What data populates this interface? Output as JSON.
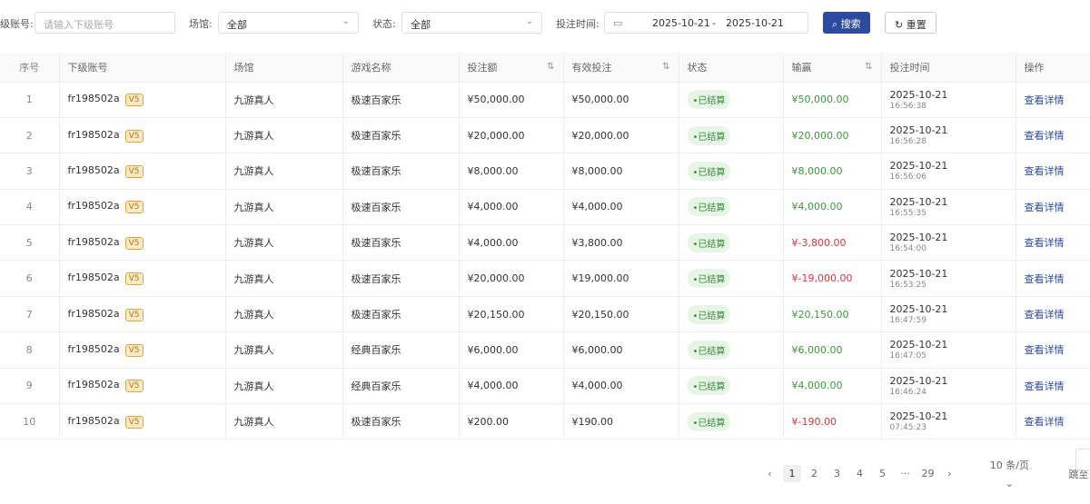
{
  "filters": {
    "account_label": "级账号:",
    "account_placeholder": "请输入下级账号",
    "venue_label": "场馆:",
    "venue_value": "全部",
    "status_label": "状态:",
    "status_value": "全部",
    "time_label": "投注时间:",
    "date_from": "2025-10-21",
    "date_sep": "-",
    "date_to": "2025-10-21",
    "search": "搜索",
    "reset": "重置"
  },
  "columns": [
    "序号",
    "下级账号",
    "场馆",
    "游戏名称",
    "投注额",
    "有效投注",
    "状态",
    "输赢",
    "投注时间",
    "操作"
  ],
  "rows": [
    {
      "idx": "1",
      "account": "fr198502a",
      "vip": "V5",
      "venue": "九游真人",
      "game": "极速百家乐",
      "bet": "¥50,000.00",
      "valid": "¥50,000.00",
      "status": "•已结算",
      "win": "¥50,000.00",
      "win_sign": "pos",
      "date": "2025-10-21",
      "time": "16:56:38",
      "action": "查看详情"
    },
    {
      "idx": "2",
      "account": "fr198502a",
      "vip": "V5",
      "venue": "九游真人",
      "game": "极速百家乐",
      "bet": "¥20,000.00",
      "valid": "¥20,000.00",
      "status": "•已结算",
      "win": "¥20,000.00",
      "win_sign": "pos",
      "date": "2025-10-21",
      "time": "16:56:28",
      "action": "查看详情"
    },
    {
      "idx": "3",
      "account": "fr198502a",
      "vip": "V5",
      "venue": "九游真人",
      "game": "极速百家乐",
      "bet": "¥8,000.00",
      "valid": "¥8,000.00",
      "status": "•已结算",
      "win": "¥8,000.00",
      "win_sign": "pos",
      "date": "2025-10-21",
      "time": "16:56:06",
      "action": "查看详情"
    },
    {
      "idx": "4",
      "account": "fr198502a",
      "vip": "V5",
      "venue": "九游真人",
      "game": "极速百家乐",
      "bet": "¥4,000.00",
      "valid": "¥4,000.00",
      "status": "•已结算",
      "win": "¥4,000.00",
      "win_sign": "pos",
      "date": "2025-10-21",
      "time": "16:55:35",
      "action": "查看详情"
    },
    {
      "idx": "5",
      "account": "fr198502a",
      "vip": "V5",
      "venue": "九游真人",
      "game": "极速百家乐",
      "bet": "¥4,000.00",
      "valid": "¥3,800.00",
      "status": "•已结算",
      "win": "¥-3,800.00",
      "win_sign": "neg",
      "date": "2025-10-21",
      "time": "16:54:00",
      "action": "查看详情"
    },
    {
      "idx": "6",
      "account": "fr198502a",
      "vip": "V5",
      "venue": "九游真人",
      "game": "极速百家乐",
      "bet": "¥20,000.00",
      "valid": "¥19,000.00",
      "status": "•已结算",
      "win": "¥-19,000.00",
      "win_sign": "neg",
      "date": "2025-10-21",
      "time": "16:53:25",
      "action": "查看详情"
    },
    {
      "idx": "7",
      "account": "fr198502a",
      "vip": "V5",
      "venue": "九游真人",
      "game": "极速百家乐",
      "bet": "¥20,150.00",
      "valid": "¥20,150.00",
      "status": "•已结算",
      "win": "¥20,150.00",
      "win_sign": "pos",
      "date": "2025-10-21",
      "time": "16:47:59",
      "action": "查看详情"
    },
    {
      "idx": "8",
      "account": "fr198502a",
      "vip": "V5",
      "venue": "九游真人",
      "game": "经典百家乐",
      "bet": "¥6,000.00",
      "valid": "¥6,000.00",
      "status": "•已结算",
      "win": "¥6,000.00",
      "win_sign": "pos",
      "date": "2025-10-21",
      "time": "16:47:05",
      "action": "查看详情"
    },
    {
      "idx": "9",
      "account": "fr198502a",
      "vip": "V5",
      "venue": "九游真人",
      "game": "经典百家乐",
      "bet": "¥4,000.00",
      "valid": "¥4,000.00",
      "status": "•已结算",
      "win": "¥4,000.00",
      "win_sign": "pos",
      "date": "2025-10-21",
      "time": "16:46:24",
      "action": "查看详情"
    },
    {
      "idx": "10",
      "account": "fr198502a",
      "vip": "V5",
      "venue": "九游真人",
      "game": "极速百家乐",
      "bet": "¥200.00",
      "valid": "¥190.00",
      "status": "•已结算",
      "win": "¥-190.00",
      "win_sign": "neg",
      "date": "2025-10-21",
      "time": "07:45:23",
      "action": "查看详情"
    }
  ],
  "pagination": {
    "prev": "‹",
    "pages": [
      "1",
      "2",
      "3",
      "4",
      "5",
      "···",
      "29"
    ],
    "current": "1",
    "next": "›",
    "page_size": "10 条/页",
    "jump_label": "跳至"
  },
  "colors": {
    "primary": "#2b4aa0",
    "positive": "#3a9a3a",
    "negative": "#d9363e"
  }
}
